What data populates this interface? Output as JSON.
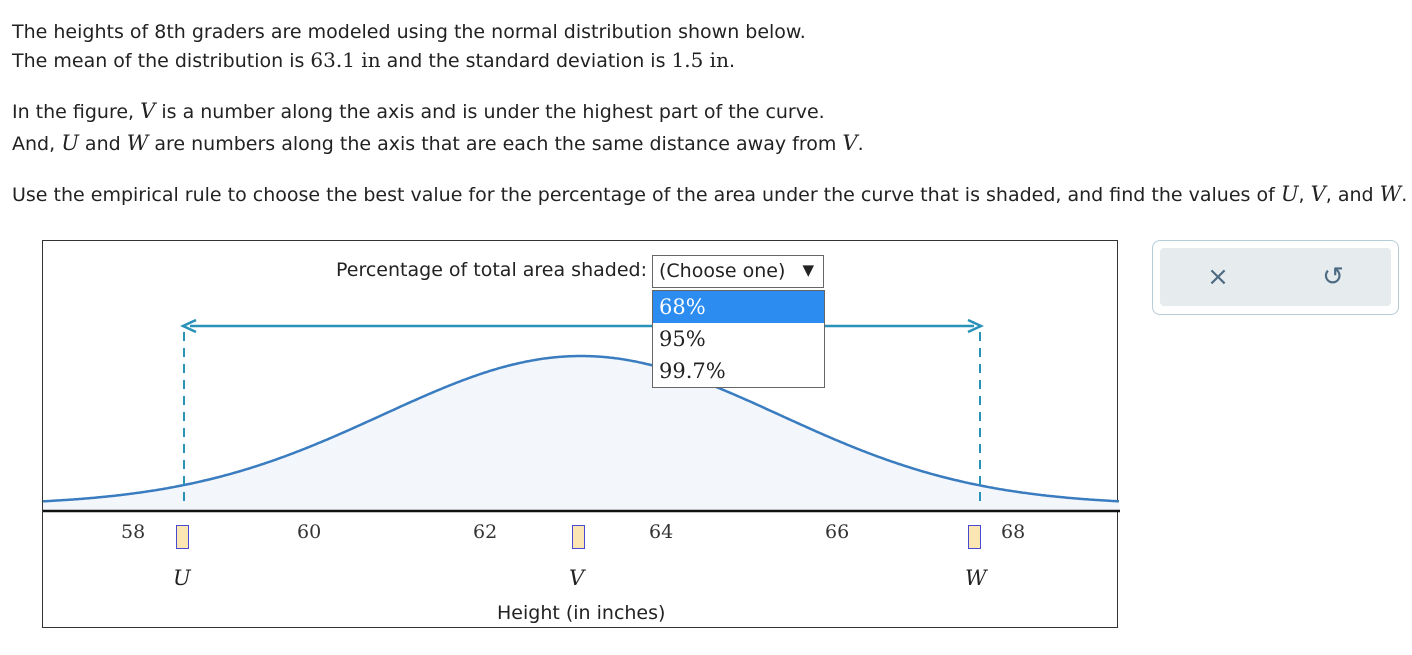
{
  "problem": {
    "line1": "The heights of 8th graders are modeled using the normal distribution shown below.",
    "line2_a": "The mean of the distribution is ",
    "line2_mean": "63.1 in",
    "line2_b": " and the standard deviation is ",
    "line2_sd": "1.5 in",
    "line2_c": ".",
    "line3_a": "In the figure, ",
    "line3_v": "V",
    "line3_b": " is a number along the axis and is under the highest part of the curve.",
    "line4_a": "And, ",
    "line4_u": "U",
    "line4_b": " and ",
    "line4_w": "W",
    "line4_c": " are numbers along the axis that are each the same distance away from ",
    "line4_v": "V",
    "line4_d": ".",
    "line5_a": "Use the empirical rule to choose the best value for the percentage of the area under the curve that is shaded, and find the values of ",
    "line5_u": "U",
    "line5_sep1": ", ",
    "line5_v": "V",
    "line5_sep2": ", and ",
    "line5_w": "W",
    "line5_end": "."
  },
  "figure": {
    "pct_label": "Percentage of total area shaded:",
    "select_value": "(Choose one)",
    "select_arrow": "▼",
    "options": [
      "68%",
      "95%",
      "99.7%"
    ],
    "highlighted_option": "68%",
    "ticks": [
      "58",
      "60",
      "62",
      "64",
      "66",
      "68"
    ],
    "variables": [
      "U",
      "V",
      "W"
    ],
    "answer_boxes": {
      "U": "",
      "V": "",
      "W": ""
    },
    "x_axis_label": "Height (in inches)",
    "curve_color": "#3a7cc0",
    "fill_color": "#f3f7fb",
    "arrow_color": "#2a92b8",
    "box_fill": "#fbe6b3",
    "box_border": "#4a4ad0"
  },
  "tools": {
    "clear_icon": "×",
    "undo_icon": "↺"
  }
}
